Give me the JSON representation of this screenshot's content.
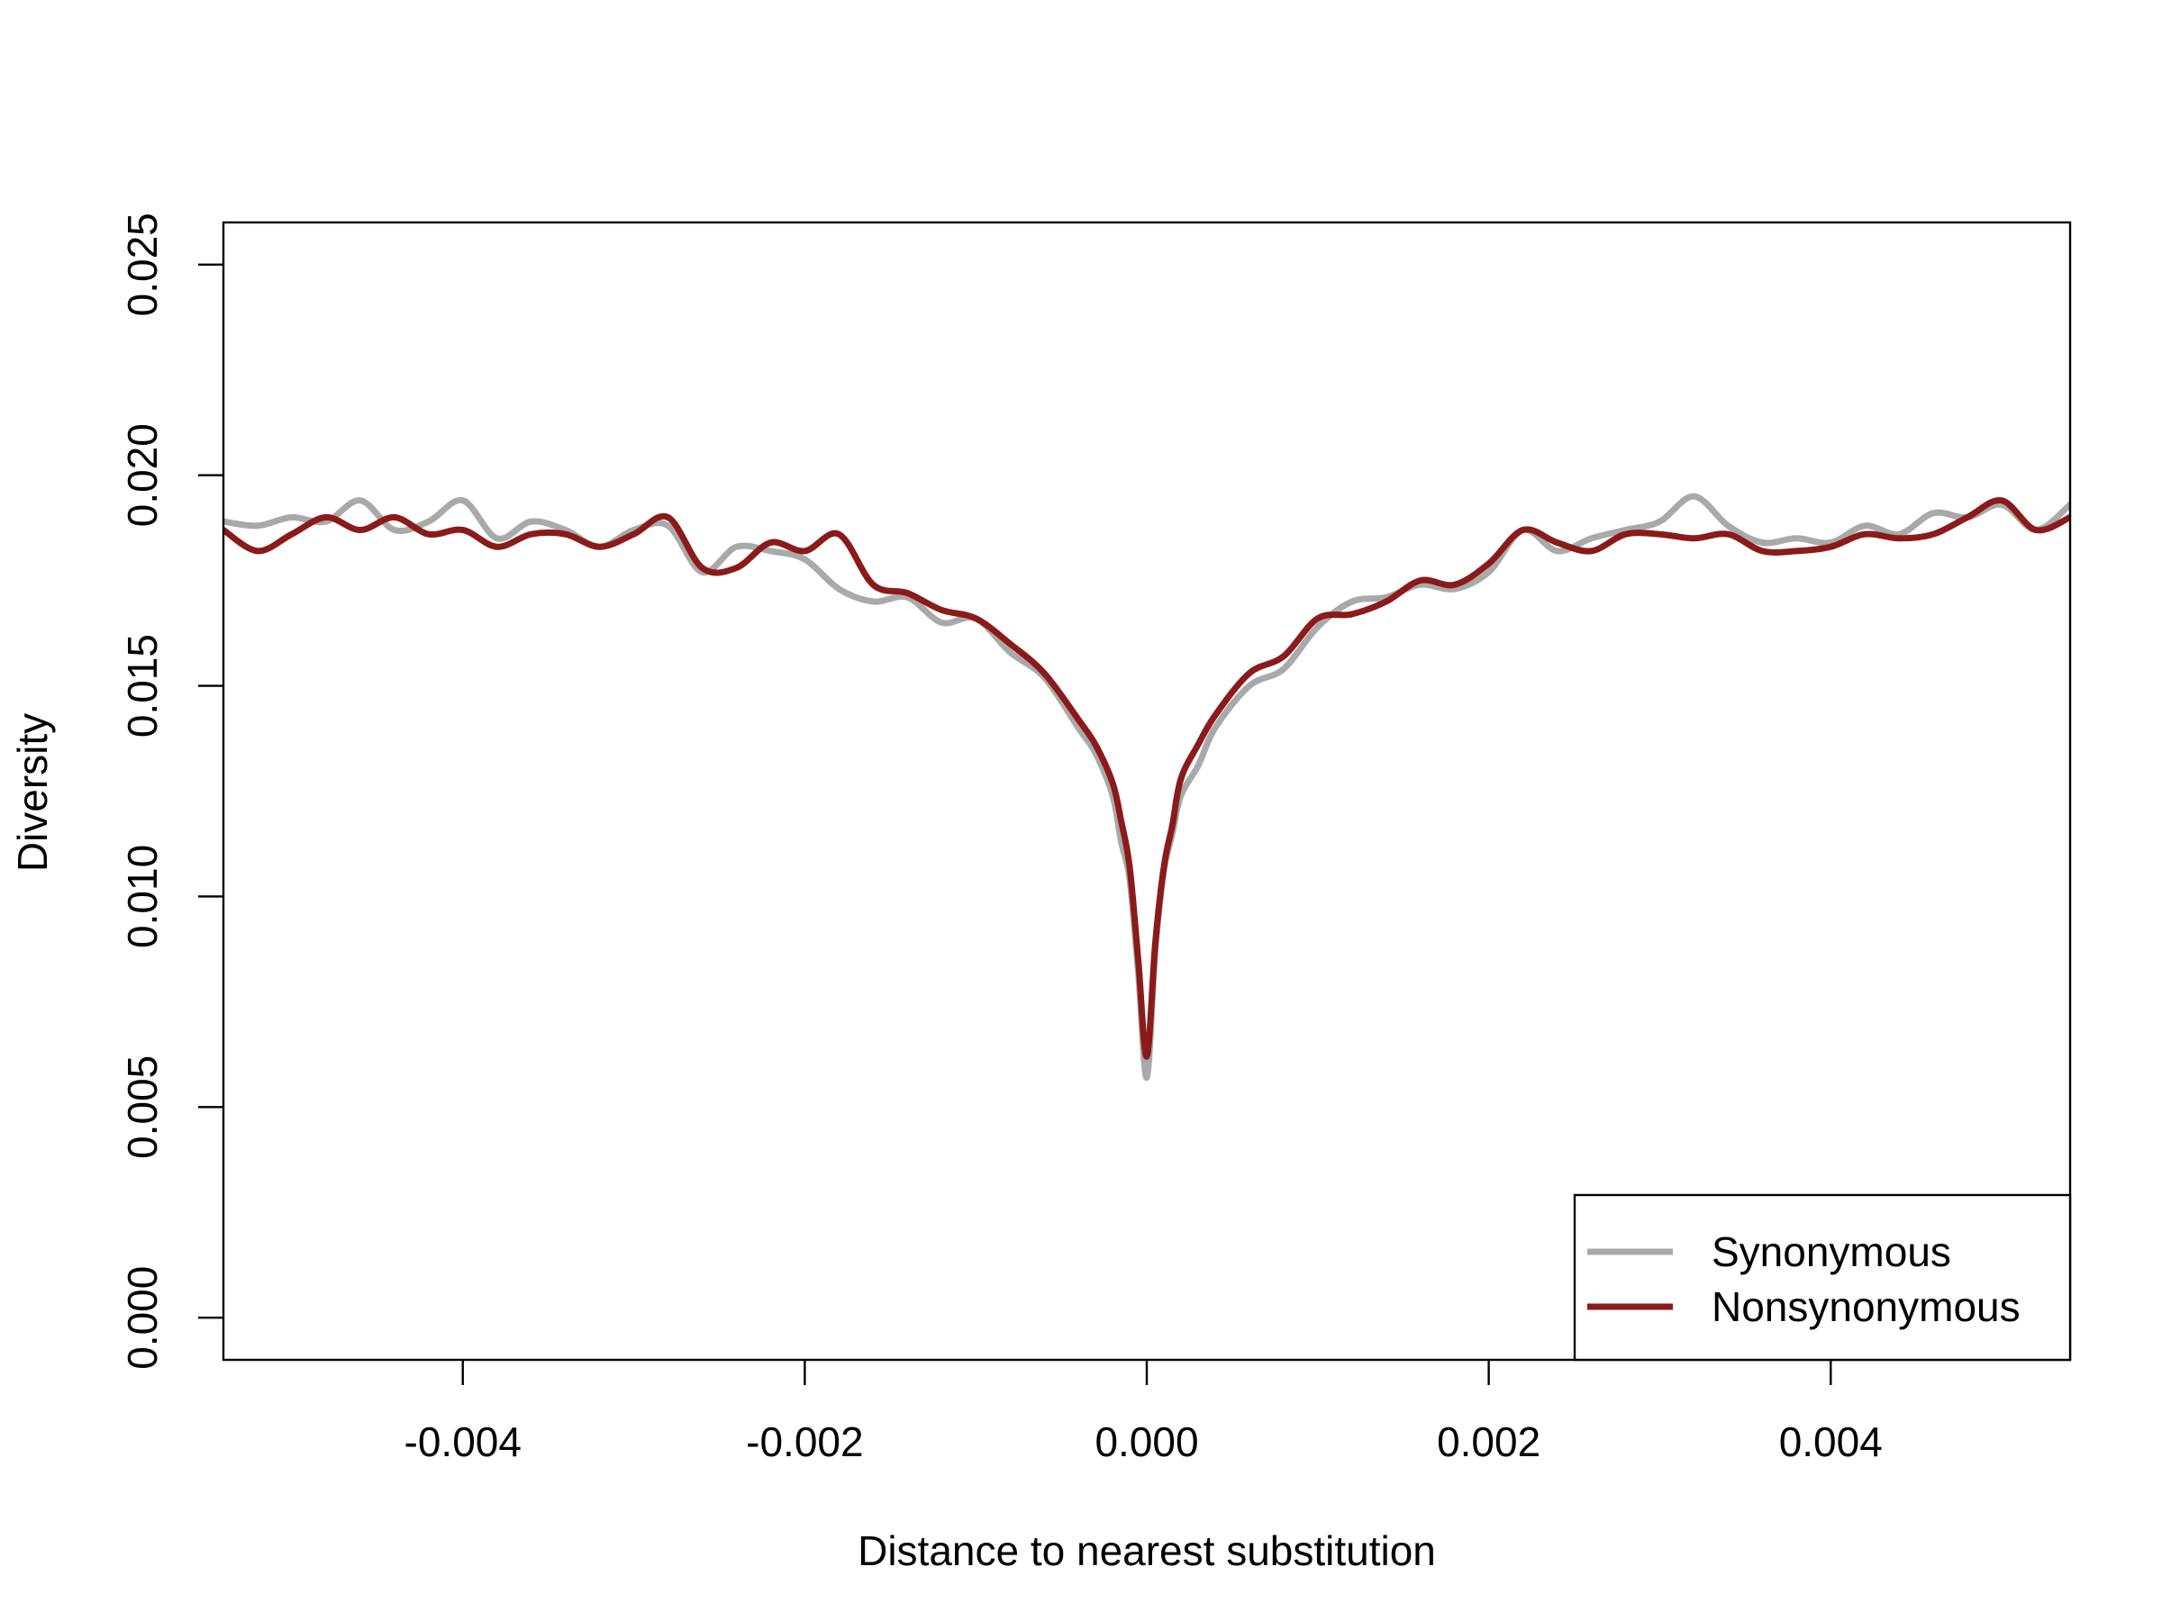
{
  "chart_data": {
    "type": "line",
    "title": "",
    "xlabel": "Distance to nearest substitution",
    "ylabel": "Diversity",
    "xlim": [
      -0.0054,
      0.0054
    ],
    "ylim": [
      -0.001,
      0.026
    ],
    "xticks": [
      {
        "value": -0.004,
        "label": "-0.004"
      },
      {
        "value": -0.002,
        "label": "-0.002"
      },
      {
        "value": 0.0,
        "label": "0.000"
      },
      {
        "value": 0.002,
        "label": "0.002"
      },
      {
        "value": 0.004,
        "label": "0.004"
      }
    ],
    "yticks": [
      {
        "value": 0.0,
        "label": "0.000"
      },
      {
        "value": 0.005,
        "label": "0.005"
      },
      {
        "value": 0.01,
        "label": "0.010"
      },
      {
        "value": 0.015,
        "label": "0.015"
      },
      {
        "value": 0.02,
        "label": "0.020"
      },
      {
        "value": 0.025,
        "label": "0.025"
      }
    ],
    "grid": false,
    "legend_position": "bottom-right",
    "x": [
      -0.0054,
      -0.0052,
      -0.005,
      -0.0048,
      -0.0046,
      -0.0044,
      -0.0042,
      -0.004,
      -0.0038,
      -0.0036,
      -0.0034,
      -0.0032,
      -0.003,
      -0.0028,
      -0.0026,
      -0.0024,
      -0.0022,
      -0.002,
      -0.0018,
      -0.0016,
      -0.0014,
      -0.0012,
      -0.001,
      -0.0008,
      -0.0006,
      -0.0004,
      -0.0003,
      -0.0002,
      -0.00015,
      -0.0001,
      -5e-05,
      0.0,
      5e-05,
      0.0001,
      0.00015,
      0.0002,
      0.0003,
      0.0004,
      0.0006,
      0.0008,
      0.001,
      0.0012,
      0.0014,
      0.0016,
      0.0018,
      0.002,
      0.0022,
      0.0024,
      0.0026,
      0.0028,
      0.003,
      0.0032,
      0.0034,
      0.0036,
      0.0038,
      0.004,
      0.0042,
      0.0044,
      0.0046,
      0.0048,
      0.005,
      0.0052,
      0.0054
    ],
    "series": [
      {
        "name": "Synonymous",
        "color": "#a9a9a9",
        "values": [
          0.0189,
          0.0188,
          0.019,
          0.0189,
          0.0194,
          0.0187,
          0.0189,
          0.0194,
          0.0185,
          0.0189,
          0.0187,
          0.0183,
          0.0187,
          0.0188,
          0.0177,
          0.0183,
          0.0182,
          0.018,
          0.0173,
          0.017,
          0.0171,
          0.0165,
          0.0166,
          0.0158,
          0.0152,
          0.014,
          0.0134,
          0.0124,
          0.0113,
          0.0104,
          0.0082,
          0.0057,
          0.0087,
          0.0106,
          0.0115,
          0.0124,
          0.0131,
          0.014,
          0.015,
          0.0154,
          0.0164,
          0.017,
          0.0171,
          0.0174,
          0.0173,
          0.0177,
          0.0187,
          0.0182,
          0.0185,
          0.0187,
          0.0189,
          0.0195,
          0.0188,
          0.0184,
          0.0185,
          0.0184,
          0.0188,
          0.0186,
          0.0191,
          0.019,
          0.0193,
          0.0187,
          0.0193
        ]
      },
      {
        "name": "Nonsynonymous",
        "color": "#8b1a1a",
        "values": [
          0.0187,
          0.0182,
          0.0186,
          0.019,
          0.0187,
          0.019,
          0.0186,
          0.0187,
          0.0183,
          0.0186,
          0.0186,
          0.0183,
          0.0186,
          0.019,
          0.0178,
          0.0178,
          0.0184,
          0.0182,
          0.0186,
          0.0174,
          0.0172,
          0.0168,
          0.0166,
          0.016,
          0.0153,
          0.0142,
          0.0136,
          0.0127,
          0.0118,
          0.0107,
          0.0085,
          0.0062,
          0.0089,
          0.0107,
          0.0117,
          0.0128,
          0.0136,
          0.0143,
          0.0153,
          0.0157,
          0.0166,
          0.0167,
          0.017,
          0.0175,
          0.0174,
          0.0179,
          0.0187,
          0.0184,
          0.0182,
          0.0186,
          0.0186,
          0.0185,
          0.0186,
          0.0182,
          0.0182,
          0.0183,
          0.0186,
          0.0185,
          0.0186,
          0.019,
          0.0194,
          0.0187,
          0.019
        ]
      }
    ]
  }
}
